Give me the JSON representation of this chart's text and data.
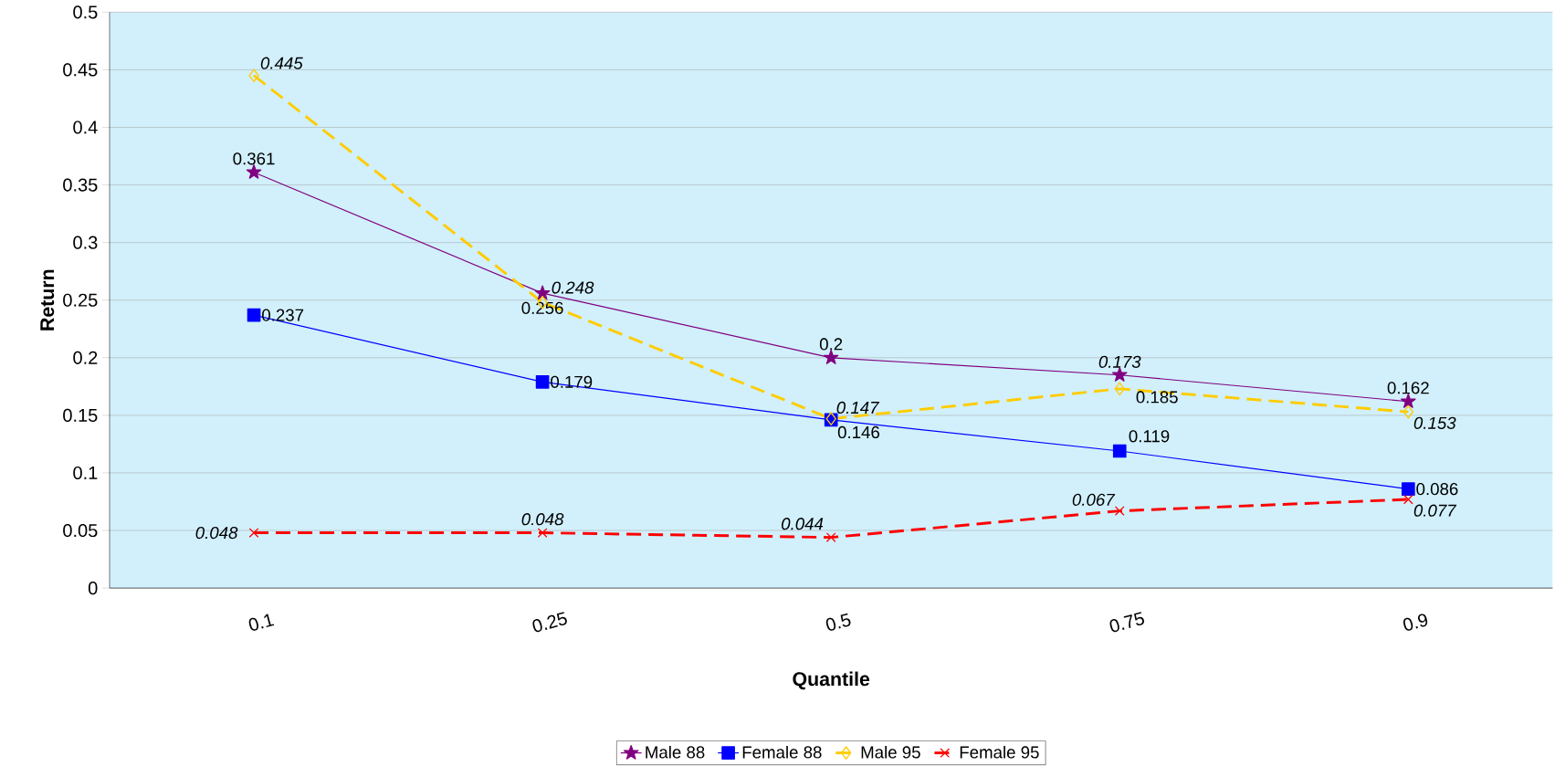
{
  "chart_data": {
    "type": "line",
    "xlabel": "Quantile",
    "ylabel": "Return",
    "categories": [
      "0.1",
      "0.25",
      "0.5",
      "0.75",
      "0.9"
    ],
    "series": [
      {
        "name": "Male 88",
        "color": "#800080",
        "marker": "star",
        "line_style": "solid",
        "values": [
          0.361,
          0.256,
          0.2,
          0.185,
          0.162
        ]
      },
      {
        "name": "Female 88",
        "color": "#0000ff",
        "marker": "square",
        "line_style": "solid",
        "values": [
          0.237,
          0.179,
          0.146,
          0.119,
          0.086
        ]
      },
      {
        "name": "Male 95",
        "color": "#ffcc00",
        "marker": "diamond",
        "line_style": "dashed",
        "values": [
          0.445,
          0.248,
          0.147,
          0.173,
          0.153
        ]
      },
      {
        "name": "Female 95",
        "color": "#ff0000",
        "marker": "cross",
        "line_style": "dashed",
        "values": [
          0.048,
          0.048,
          0.044,
          0.067,
          0.077
        ]
      }
    ],
    "ylim": [
      0,
      0.5
    ],
    "yticks": [
      0,
      0.05,
      0.1,
      0.15,
      0.2,
      0.25,
      0.3,
      0.35,
      0.4,
      0.45,
      0.5
    ],
    "grid": "y",
    "legend": "bottom",
    "data_labels": true
  }
}
